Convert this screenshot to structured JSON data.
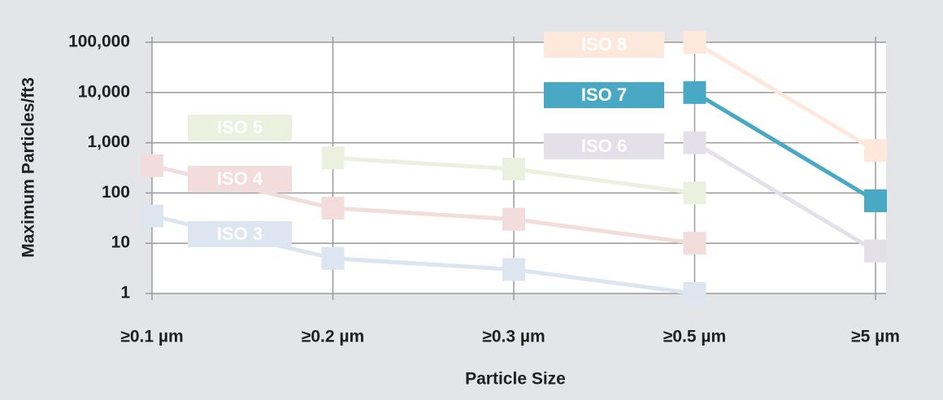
{
  "chart_data": {
    "type": "line",
    "x_label": "Particle Size",
    "y_label": "Maximum Particles/ft3",
    "log_scale": true,
    "grid": true,
    "categories": [
      "≥0.1 µm",
      "≥0.2 µm",
      "≥0.3 µm",
      "≥0.5 µm",
      "≥5 µm"
    ],
    "ylim": [
      1,
      100000
    ],
    "yticks": [
      {
        "value": 100000,
        "label": "100,000"
      },
      {
        "value": 10000,
        "label": "10,000"
      },
      {
        "value": 1000,
        "label": "1,000"
      },
      100,
      10,
      1
    ],
    "series": [
      {
        "name": "ISO 3",
        "color": "#dce5f0",
        "values": [
          35,
          5,
          3,
          1,
          null
        ]
      },
      {
        "name": "ISO 4",
        "color": "#f2dcdc",
        "values": [
          350,
          50,
          30,
          10,
          null
        ]
      },
      {
        "name": "ISO 5",
        "color": "#ecf0df",
        "values": [
          null,
          500,
          300,
          100,
          null
        ]
      },
      {
        "name": "ISO 6",
        "color": "#e3e0e9",
        "values": [
          null,
          null,
          null,
          1000,
          7
        ]
      },
      {
        "name": "ISO 8",
        "color": "#fde8db",
        "values": [
          null,
          null,
          null,
          100000,
          700
        ]
      },
      {
        "name": "ISO 7",
        "color": "#49a9c5",
        "values": [
          null,
          null,
          null,
          10000,
          70
        ]
      }
    ]
  }
}
